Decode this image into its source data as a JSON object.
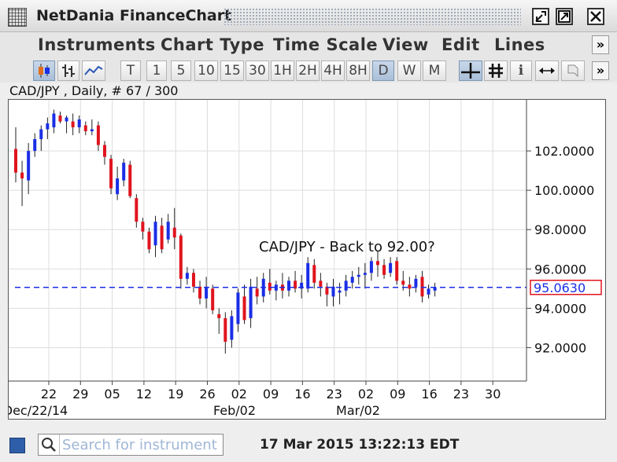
{
  "window": {
    "title": "NetDania FinanceChart",
    "controls": [
      "minimize",
      "maximize",
      "close"
    ]
  },
  "menu": {
    "items": [
      "Instruments",
      "Chart Type",
      "Time Scale",
      "View",
      "Edit",
      "Lines"
    ],
    "overflow": "»"
  },
  "toolbar": {
    "chart_types": [
      "candlestick-icon",
      "bar-ohlc-icon",
      "line-icon"
    ],
    "timeframes": [
      "T",
      "1",
      "5",
      "10",
      "15",
      "30",
      "1H",
      "2H",
      "4H",
      "8H",
      "D",
      "W",
      "M"
    ],
    "active_timeframe": "D",
    "tools": [
      "crosshair-icon",
      "grid-icon",
      "info-icon",
      "scroll-arrows-icon",
      "bookmark-icon"
    ],
    "overflow": "»"
  },
  "chart": {
    "header": "CAD/JPY , Daily, # 67 / 300",
    "annotation": "CAD/JPY - Back to 92.00?",
    "current_price_label": "95.0630",
    "colors": {
      "up": "#1a2ee6",
      "down": "#e0141e",
      "wick": "#222222",
      "dashed_line": "#1a2ee6",
      "grid": "#dddddd"
    }
  },
  "chart_data": {
    "type": "candlestick",
    "title": "CAD/JPY , Daily, # 67 / 300",
    "ylim": [
      90.3,
      104.6
    ],
    "y_ticks": [
      "102.0000",
      "100.0000",
      "98.0000",
      "96.0000",
      "94.0000",
      "92.0000"
    ],
    "x_ticks": [
      "22",
      "29",
      "05",
      "12",
      "19",
      "26",
      "02",
      "09",
      "16",
      "23",
      "02",
      "09",
      "16",
      "23",
      "30"
    ],
    "month_labels": [
      "Dec/22/14",
      "Feb/02",
      "Mar/02"
    ],
    "reference_line": 95.063,
    "candles": [
      {
        "o": 102.1,
        "h": 103.2,
        "l": 100.4,
        "c": 100.9
      },
      {
        "o": 100.9,
        "h": 101.5,
        "l": 99.2,
        "c": 100.6
      },
      {
        "o": 100.5,
        "h": 102.4,
        "l": 99.8,
        "c": 102.0
      },
      {
        "o": 102.0,
        "h": 102.9,
        "l": 101.7,
        "c": 102.6
      },
      {
        "o": 102.6,
        "h": 103.3,
        "l": 102.0,
        "c": 103.1
      },
      {
        "o": 103.1,
        "h": 103.7,
        "l": 102.6,
        "c": 103.4
      },
      {
        "o": 103.2,
        "h": 104.1,
        "l": 102.9,
        "c": 103.9
      },
      {
        "o": 103.8,
        "h": 104.0,
        "l": 103.4,
        "c": 103.5
      },
      {
        "o": 103.5,
        "h": 103.8,
        "l": 102.9,
        "c": 103.7
      },
      {
        "o": 103.5,
        "h": 103.9,
        "l": 102.8,
        "c": 103.2
      },
      {
        "o": 103.2,
        "h": 103.8,
        "l": 102.9,
        "c": 103.6
      },
      {
        "o": 103.3,
        "h": 103.5,
        "l": 102.8,
        "c": 103.0
      },
      {
        "o": 103.0,
        "h": 103.6,
        "l": 102.8,
        "c": 103.1
      },
      {
        "o": 103.3,
        "h": 103.5,
        "l": 102.0,
        "c": 102.3
      },
      {
        "o": 102.3,
        "h": 102.5,
        "l": 101.3,
        "c": 101.7
      },
      {
        "o": 101.6,
        "h": 101.8,
        "l": 99.8,
        "c": 100.1
      },
      {
        "o": 99.8,
        "h": 101.2,
        "l": 99.5,
        "c": 100.6
      },
      {
        "o": 100.5,
        "h": 101.6,
        "l": 100.2,
        "c": 101.4
      },
      {
        "o": 101.3,
        "h": 101.5,
        "l": 99.6,
        "c": 99.7
      },
      {
        "o": 99.6,
        "h": 99.8,
        "l": 98.1,
        "c": 98.4
      },
      {
        "o": 98.4,
        "h": 98.6,
        "l": 97.5,
        "c": 97.9
      },
      {
        "o": 97.9,
        "h": 98.1,
        "l": 96.8,
        "c": 97.0
      },
      {
        "o": 97.2,
        "h": 98.7,
        "l": 96.6,
        "c": 98.4
      },
      {
        "o": 98.2,
        "h": 98.6,
        "l": 96.8,
        "c": 97.0
      },
      {
        "o": 97.5,
        "h": 98.8,
        "l": 97.3,
        "c": 98.4
      },
      {
        "o": 98.1,
        "h": 99.1,
        "l": 97.0,
        "c": 97.6
      },
      {
        "o": 97.7,
        "h": 97.8,
        "l": 95.0,
        "c": 95.5
      },
      {
        "o": 95.5,
        "h": 96.1,
        "l": 95.2,
        "c": 95.8
      },
      {
        "o": 95.8,
        "h": 96.0,
        "l": 94.8,
        "c": 95.1
      },
      {
        "o": 95.1,
        "h": 95.4,
        "l": 94.2,
        "c": 94.5
      },
      {
        "o": 94.5,
        "h": 95.6,
        "l": 94.0,
        "c": 95.1
      },
      {
        "o": 95.0,
        "h": 95.2,
        "l": 93.7,
        "c": 93.9
      },
      {
        "o": 93.7,
        "h": 94.0,
        "l": 92.7,
        "c": 93.5
      },
      {
        "o": 93.5,
        "h": 93.8,
        "l": 91.7,
        "c": 92.3
      },
      {
        "o": 92.4,
        "h": 93.9,
        "l": 92.0,
        "c": 93.6
      },
      {
        "o": 93.2,
        "h": 95.0,
        "l": 92.8,
        "c": 94.8
      },
      {
        "o": 94.6,
        "h": 95.2,
        "l": 93.2,
        "c": 93.4
      },
      {
        "o": 93.5,
        "h": 95.5,
        "l": 93.0,
        "c": 95.1
      },
      {
        "o": 95.0,
        "h": 95.6,
        "l": 94.2,
        "c": 94.6
      },
      {
        "o": 94.6,
        "h": 95.8,
        "l": 94.3,
        "c": 95.5
      },
      {
        "o": 95.3,
        "h": 96.0,
        "l": 94.7,
        "c": 94.9
      },
      {
        "o": 94.9,
        "h": 95.4,
        "l": 94.4,
        "c": 95.2
      },
      {
        "o": 95.2,
        "h": 95.8,
        "l": 94.5,
        "c": 94.9
      },
      {
        "o": 94.9,
        "h": 95.6,
        "l": 94.6,
        "c": 95.4
      },
      {
        "o": 95.4,
        "h": 95.9,
        "l": 94.8,
        "c": 95.0
      },
      {
        "o": 95.0,
        "h": 95.7,
        "l": 94.5,
        "c": 95.3
      },
      {
        "o": 95.0,
        "h": 96.6,
        "l": 94.8,
        "c": 96.3
      },
      {
        "o": 96.2,
        "h": 96.5,
        "l": 95.0,
        "c": 95.3
      },
      {
        "o": 95.4,
        "h": 95.8,
        "l": 94.6,
        "c": 95.1
      },
      {
        "o": 95.1,
        "h": 95.3,
        "l": 94.1,
        "c": 94.7
      },
      {
        "o": 94.6,
        "h": 95.5,
        "l": 94.1,
        "c": 95.1
      },
      {
        "o": 94.8,
        "h": 95.3,
        "l": 94.2,
        "c": 94.9
      },
      {
        "o": 94.9,
        "h": 95.7,
        "l": 94.6,
        "c": 95.4
      },
      {
        "o": 95.3,
        "h": 95.9,
        "l": 95.0,
        "c": 95.6
      },
      {
        "o": 95.6,
        "h": 96.1,
        "l": 95.2,
        "c": 95.7
      },
      {
        "o": 95.7,
        "h": 96.3,
        "l": 95.0,
        "c": 95.8
      },
      {
        "o": 95.8,
        "h": 96.6,
        "l": 95.4,
        "c": 96.4
      },
      {
        "o": 96.4,
        "h": 96.9,
        "l": 95.6,
        "c": 96.2
      },
      {
        "o": 96.2,
        "h": 96.5,
        "l": 95.5,
        "c": 95.7
      },
      {
        "o": 95.8,
        "h": 96.6,
        "l": 95.6,
        "c": 96.3
      },
      {
        "o": 96.4,
        "h": 96.6,
        "l": 95.2,
        "c": 95.4
      },
      {
        "o": 95.4,
        "h": 95.9,
        "l": 94.9,
        "c": 95.2
      },
      {
        "o": 95.2,
        "h": 95.6,
        "l": 94.6,
        "c": 95.0
      },
      {
        "o": 95.1,
        "h": 95.7,
        "l": 94.8,
        "c": 95.5
      },
      {
        "o": 95.6,
        "h": 95.9,
        "l": 94.3,
        "c": 94.6
      },
      {
        "o": 94.7,
        "h": 95.2,
        "l": 94.5,
        "c": 95.0
      },
      {
        "o": 94.9,
        "h": 95.3,
        "l": 94.6,
        "c": 95.06
      }
    ]
  },
  "statusbar": {
    "search_placeholder": "Search for instrument",
    "timestamp": "17 Mar 2015 13:22:13 EDT"
  }
}
